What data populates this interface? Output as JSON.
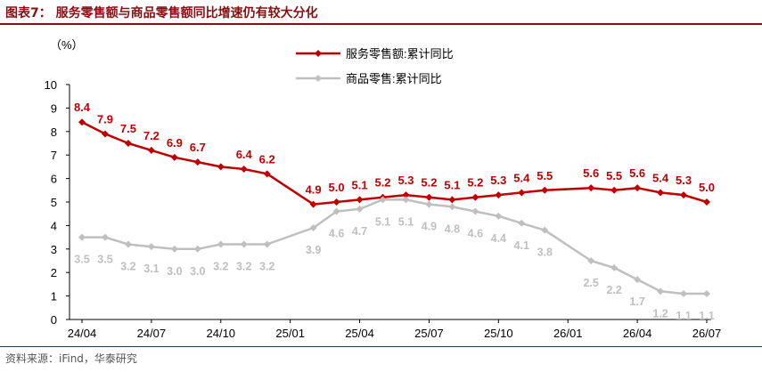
{
  "header": {
    "title": "图表7：  服务零售额与商品零售额同比增速仍有较大分化"
  },
  "footer": {
    "source": "资料来源：iFind，华泰研究"
  },
  "chart_data": {
    "type": "line",
    "ylabel": "（%）",
    "ylim": [
      0,
      10
    ],
    "yticks": [
      "0",
      "1",
      "2",
      "3",
      "4",
      "5",
      "6",
      "7",
      "8",
      "9",
      "10"
    ],
    "xlim": [
      "2024-04",
      "2026-07"
    ],
    "xticks": [
      "24/04",
      "24/07",
      "24/10",
      "25/01",
      "25/04",
      "25/07",
      "25/10",
      "26/01",
      "26/04",
      "26/07"
    ],
    "grid": false,
    "legend_position": "top-center",
    "series": [
      {
        "name": "服务零售额:累计同比",
        "color": "#c00000",
        "marker": "diamond",
        "label_color": "#c00000",
        "points": [
          {
            "x": "2024-04",
            "y": 8.4,
            "label": "8.4"
          },
          {
            "x": "2024-05",
            "y": 7.9,
            "label": "7.9"
          },
          {
            "x": "2024-06",
            "y": 7.5,
            "label": "7.5"
          },
          {
            "x": "2024-07",
            "y": 7.2,
            "label": "7.2"
          },
          {
            "x": "2024-08",
            "y": 6.9,
            "label": "6.9"
          },
          {
            "x": "2024-09",
            "y": 6.7,
            "label": "6.7"
          },
          {
            "x": "2024-10",
            "y": 6.5
          },
          {
            "x": "2024-11",
            "y": 6.4,
            "label": "6.4"
          },
          {
            "x": "2024-12",
            "y": 6.2,
            "label": "6.2"
          },
          {
            "x": "2025-02",
            "y": 4.9,
            "label": "4.9"
          },
          {
            "x": "2025-03",
            "y": 5.0,
            "label": "5.0"
          },
          {
            "x": "2025-04",
            "y": 5.1,
            "label": "5.1"
          },
          {
            "x": "2025-05",
            "y": 5.2,
            "label": "5.2"
          },
          {
            "x": "2025-06",
            "y": 5.3,
            "label": "5.3"
          },
          {
            "x": "2025-07",
            "y": 5.2,
            "label": "5.2"
          },
          {
            "x": "2025-08",
            "y": 5.1,
            "label": "5.1"
          },
          {
            "x": "2025-09",
            "y": 5.2,
            "label": "5.2"
          },
          {
            "x": "2025-10",
            "y": 5.3,
            "label": "5.3"
          },
          {
            "x": "2025-11",
            "y": 5.4,
            "label": "5.4"
          },
          {
            "x": "2025-12",
            "y": 5.5,
            "label": "5.5"
          },
          {
            "x": "2026-02",
            "y": 5.6,
            "label": "5.6"
          },
          {
            "x": "2026-03",
            "y": 5.5,
            "label": "5.5"
          },
          {
            "x": "2026-04",
            "y": 5.6,
            "label": "5.6"
          },
          {
            "x": "2026-05",
            "y": 5.4,
            "label": "5.4"
          },
          {
            "x": "2026-06",
            "y": 5.3,
            "label": "5.3"
          },
          {
            "x": "2026-07",
            "y": 5.0,
            "label": "5.0"
          }
        ]
      },
      {
        "name": "商品零售:累计同比",
        "color": "#bfbfbf",
        "marker": "diamond",
        "label_color": "#bfbfbf",
        "points": [
          {
            "x": "2024-04",
            "y": 3.5,
            "label": "3.5"
          },
          {
            "x": "2024-05",
            "y": 3.5,
            "label": "3.5"
          },
          {
            "x": "2024-06",
            "y": 3.2,
            "label": "3.2"
          },
          {
            "x": "2024-07",
            "y": 3.1,
            "label": "3.1"
          },
          {
            "x": "2024-08",
            "y": 3.0,
            "label": "3.0"
          },
          {
            "x": "2024-09",
            "y": 3.0,
            "label": "3.0"
          },
          {
            "x": "2024-10",
            "y": 3.2,
            "label": "3.2"
          },
          {
            "x": "2024-11",
            "y": 3.2,
            "label": "3.2"
          },
          {
            "x": "2024-12",
            "y": 3.2,
            "label": "3.2"
          },
          {
            "x": "2025-02",
            "y": 3.9,
            "label": "3.9"
          },
          {
            "x": "2025-03",
            "y": 4.6,
            "label": "4.6"
          },
          {
            "x": "2025-04",
            "y": 4.7,
            "label": "4.7"
          },
          {
            "x": "2025-05",
            "y": 5.1,
            "label": "5.1"
          },
          {
            "x": "2025-06",
            "y": 5.1,
            "label": "5.1"
          },
          {
            "x": "2025-07",
            "y": 4.9,
            "label": "4.9"
          },
          {
            "x": "2025-08",
            "y": 4.8,
            "label": "4.8"
          },
          {
            "x": "2025-09",
            "y": 4.6,
            "label": "4.6"
          },
          {
            "x": "2025-10",
            "y": 4.4,
            "label": "4.4"
          },
          {
            "x": "2025-11",
            "y": 4.1,
            "label": "4.1"
          },
          {
            "x": "2025-12",
            "y": 3.8,
            "label": "3.8"
          },
          {
            "x": "2026-02",
            "y": 2.5,
            "label": "2.5"
          },
          {
            "x": "2026-03",
            "y": 2.2,
            "label": "2.2"
          },
          {
            "x": "2026-04",
            "y": 1.7,
            "label": "1.7"
          },
          {
            "x": "2026-05",
            "y": 1.2,
            "label": "1.2"
          },
          {
            "x": "2026-06",
            "y": 1.1,
            "label": "1.1"
          },
          {
            "x": "2026-07",
            "y": 1.1,
            "label": "1.1"
          }
        ]
      }
    ]
  }
}
